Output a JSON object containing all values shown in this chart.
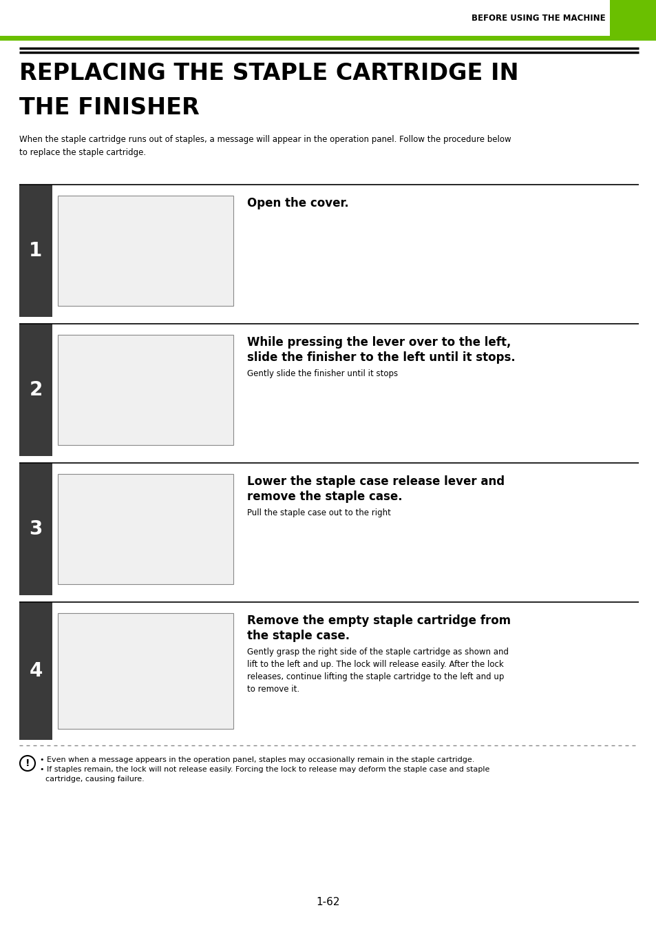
{
  "page_header_text": "BEFORE USING THE MACHINE",
  "green_bar_color": "#6abf00",
  "title_line1": "REPLACING THE STAPLE CARTRIDGE IN",
  "title_line2": "THE FINISHER",
  "intro_text": "When the staple cartridge runs out of staples, a message will appear in the operation panel. Follow the procedure below\nto replace the staple cartridge.",
  "steps": [
    {
      "number": "1",
      "title": "Open the cover.",
      "subtitle": "",
      "body": ""
    },
    {
      "number": "2",
      "title": "While pressing the lever over to the left,\nslide the finisher to the left until it stops.",
      "subtitle": "Gently slide the finisher until it stops",
      "body": ""
    },
    {
      "number": "3",
      "title": "Lower the staple case release lever and\nremove the staple case.",
      "subtitle": "Pull the staple case out to the right",
      "body": ""
    },
    {
      "number": "4",
      "title": "Remove the empty staple cartridge from\nthe staple case.",
      "subtitle": "",
      "body": "Gently grasp the right side of the staple cartridge as shown and\nlift to the left and up. The lock will release easily. After the lock\nreleases, continue lifting the staple cartridge to the left and up\nto remove it."
    }
  ],
  "warning_bullets": [
    "Even when a message appears in the operation panel, staples may occasionally remain in the staple cartridge.",
    "If staples remain, the lock will not release easily. Forcing the lock to release may deform the staple case and staple\ncartridge, causing failure."
  ],
  "page_number": "1-62",
  "dark_bar_color": "#3a3a3a",
  "step_num_color": "#ffffff",
  "bg_color": "#ffffff",
  "text_color": "#000000"
}
